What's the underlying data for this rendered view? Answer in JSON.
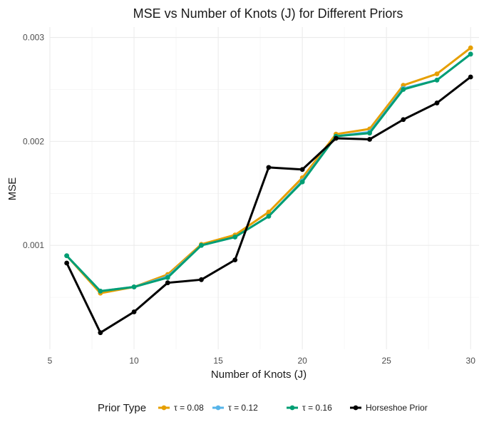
{
  "chart_data": {
    "type": "line",
    "title": "MSE vs Number of Knots (J) for Different Priors",
    "xlabel": "Number of Knots (J)",
    "ylabel": "MSE",
    "x": [
      6,
      8,
      10,
      12,
      14,
      16,
      18,
      20,
      22,
      24,
      26,
      28,
      30
    ],
    "xlim": [
      5,
      30.5
    ],
    "ylim": [
      0.0,
      0.0031
    ],
    "x_ticks": [
      5,
      10,
      15,
      20,
      25,
      30
    ],
    "x_tick_labels": [
      "5",
      "10",
      "15",
      "20",
      "25",
      "30"
    ],
    "y_ticks": [
      0.001,
      0.002,
      0.003
    ],
    "y_tick_labels": [
      "0.001",
      "0.002",
      "0.003"
    ],
    "grid": true,
    "legend_title": "Prior Type",
    "legend_position": "bottom",
    "series": [
      {
        "name": "τ = 0.08",
        "color": "#E69F00",
        "values": [
          0.0009,
          0.00054,
          0.0006,
          0.00072,
          0.00101,
          0.0011,
          0.00132,
          0.00165,
          0.00207,
          0.00212,
          0.00254,
          0.00265,
          0.0029
        ]
      },
      {
        "name": "τ = 0.12",
        "color": "#56B4E9",
        "values": [
          0.0009,
          0.00056,
          0.0006,
          0.0007,
          0.001,
          0.00108,
          0.00128,
          0.00162,
          0.00205,
          0.00209,
          0.00251,
          0.00259,
          0.00284
        ]
      },
      {
        "name": "τ = 0.16",
        "color": "#009E73",
        "values": [
          0.0009,
          0.00056,
          0.0006,
          0.00069,
          0.001,
          0.00108,
          0.00128,
          0.00161,
          0.00205,
          0.00208,
          0.0025,
          0.00259,
          0.00284
        ]
      },
      {
        "name": "Horseshoe Prior",
        "color": "#000000",
        "values": [
          0.00083,
          0.00016,
          0.00036,
          0.00064,
          0.00067,
          0.00086,
          0.00175,
          0.00173,
          0.00203,
          0.00202,
          0.00221,
          0.00237,
          0.00262
        ]
      }
    ]
  }
}
